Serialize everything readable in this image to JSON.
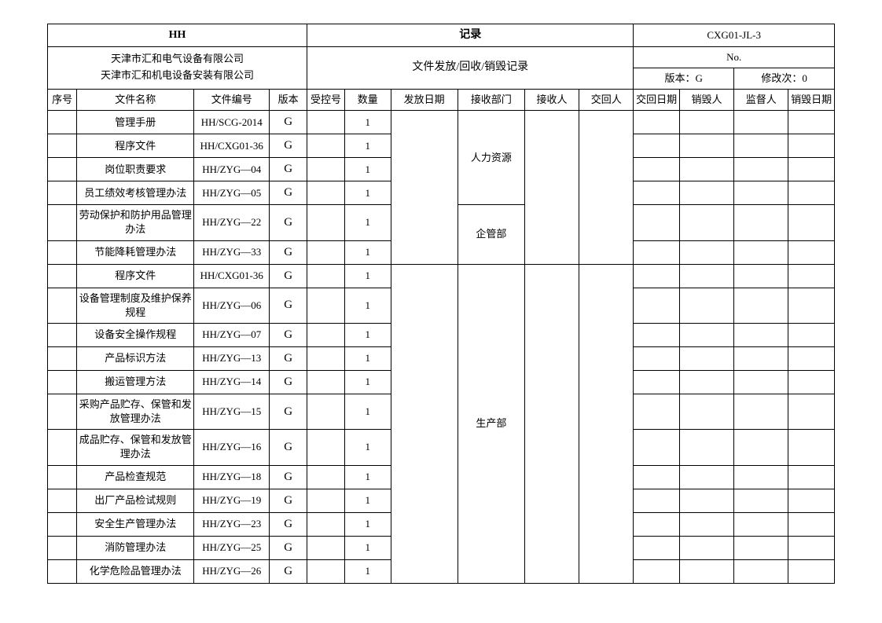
{
  "header": {
    "company_code": "HH",
    "record_label": "记录",
    "doc_number": "CXG01-JL-3",
    "company_line1": "天津市汇和电气设备有限公司",
    "company_line2": "天津市汇和机电设备安装有限公司",
    "subtitle": "文件发放/回收/销毁记录",
    "no_label": "No.",
    "version_label": "版本：G",
    "revision_label": "修改次：0"
  },
  "columns": {
    "seq": "序号",
    "name": "文件名称",
    "code": "文件编号",
    "version": "版本",
    "control": "受控号",
    "qty": "数量",
    "release_date": "发放日期",
    "dept": "接收部门",
    "receiver": "接收人",
    "deliverer": "交回人",
    "return_date": "交回日期",
    "destroyer": "销毁人",
    "supervisor": "监督人",
    "destroy_date": "销毁日期"
  },
  "depts": {
    "hr": "人力资源",
    "qg": "企管部",
    "prod": "生产部"
  },
  "rows": [
    {
      "name": "管理手册",
      "code": "HH/SCG-2014",
      "ver": "G",
      "qty": "1"
    },
    {
      "name": "程序文件",
      "code": "HH/CXG01-36",
      "ver": "G",
      "qty": "1"
    },
    {
      "name": "岗位职责要求",
      "code": "HH/ZYG—04",
      "ver": "G",
      "qty": "1"
    },
    {
      "name": "员工绩效考核管理办法",
      "code": "HH/ZYG—05",
      "ver": "G",
      "qty": "1"
    },
    {
      "name": "劳动保护和防护用品管理办法",
      "code": "HH/ZYG—22",
      "ver": "G",
      "qty": "1"
    },
    {
      "name": "节能降耗管理办法",
      "code": "HH/ZYG—33",
      "ver": "G",
      "qty": "1"
    },
    {
      "name": "程序文件",
      "code": "HH/CXG01-36",
      "ver": "G",
      "qty": "1"
    },
    {
      "name": "设备管理制度及维护保养规程",
      "code": "HH/ZYG—06",
      "ver": "G",
      "qty": "1"
    },
    {
      "name": "设备安全操作规程",
      "code": "HH/ZYG—07",
      "ver": "G",
      "qty": "1"
    },
    {
      "name": "产品标识方法",
      "code": "HH/ZYG—13",
      "ver": "G",
      "qty": "1"
    },
    {
      "name": "搬运管理方法",
      "code": "HH/ZYG—14",
      "ver": "G",
      "qty": "1"
    },
    {
      "name": "采购产品贮存、保管和发放管理办法",
      "code": "HH/ZYG—15",
      "ver": "G",
      "qty": "1"
    },
    {
      "name": "成品贮存、保管和发放管理办法",
      "code": "HH/ZYG—16",
      "ver": "G",
      "qty": "1"
    },
    {
      "name": "产品检查规范",
      "code": "HH/ZYG—18",
      "ver": "G",
      "qty": "1"
    },
    {
      "name": "出厂产品检试规则",
      "code": "HH/ZYG—19",
      "ver": "G",
      "qty": "1"
    },
    {
      "name": "安全生产管理办法",
      "code": "HH/ZYG—23",
      "ver": "G",
      "qty": "1"
    },
    {
      "name": "消防管理办法",
      "code": "HH/ZYG—25",
      "ver": "G",
      "qty": "1"
    },
    {
      "name": "化学危险品管理办法",
      "code": "HH/ZYG—26",
      "ver": "G",
      "qty": "1"
    }
  ]
}
